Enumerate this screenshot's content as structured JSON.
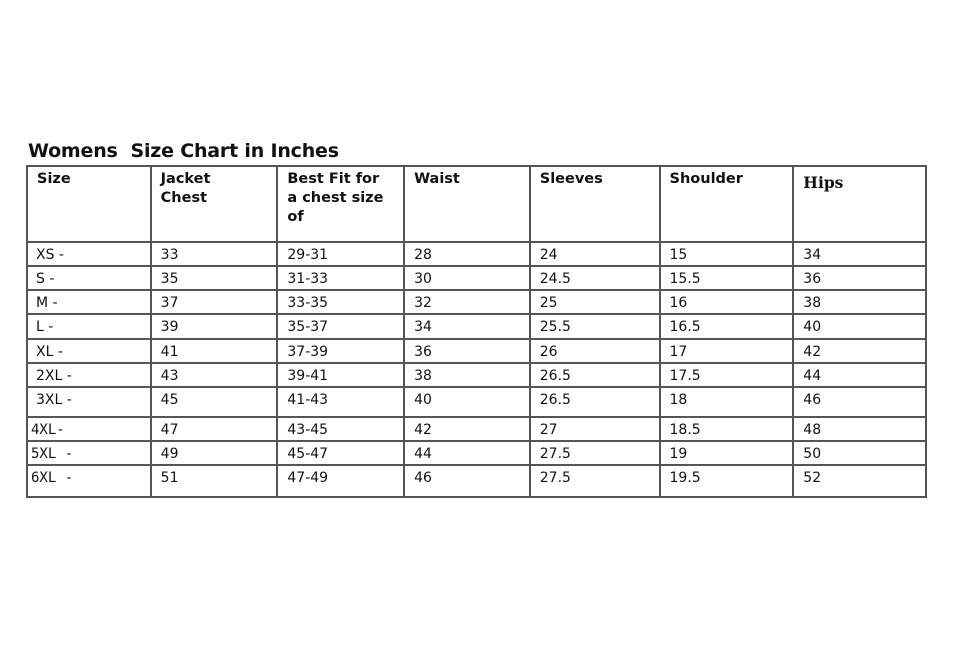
{
  "title": "Womens  Size Chart in Inches",
  "columns": [
    "Size",
    "Jacket\nChest",
    "Best Fit for\na chest size\nof",
    "Waist",
    "Sleeves",
    "Shoulder",
    "Hips"
  ],
  "rows": [
    [
      "XS -",
      "33",
      "29-31",
      "28",
      "24",
      "15",
      "34"
    ],
    [
      "S -",
      "35",
      "31-33",
      "30",
      "24.5",
      "15.5",
      "36"
    ],
    [
      "M -",
      "37",
      "33-35",
      "32",
      "25",
      "16",
      "38"
    ],
    [
      "L -",
      "39",
      "35-37",
      "34",
      "25.5",
      "16.5",
      "40"
    ],
    [
      "XL -",
      "41",
      "37-39",
      "36",
      "26",
      "17",
      "42"
    ],
    [
      "2XL -",
      "43",
      "39-41",
      "38",
      "26.5",
      "17.5",
      "44"
    ],
    [
      "3XL -",
      "45",
      "41-43",
      "40",
      "26.5",
      "18",
      "46"
    ],
    [
      "4XL-",
      "47",
      "43-45",
      "42",
      "27",
      "18.5",
      "48"
    ],
    [
      "5XL -",
      "49",
      "45-47",
      "44",
      "27.5",
      "19",
      "50"
    ],
    [
      "6XL -",
      "51",
      "47-49",
      "46",
      "27.5",
      "19.5",
      "52"
    ]
  ]
}
